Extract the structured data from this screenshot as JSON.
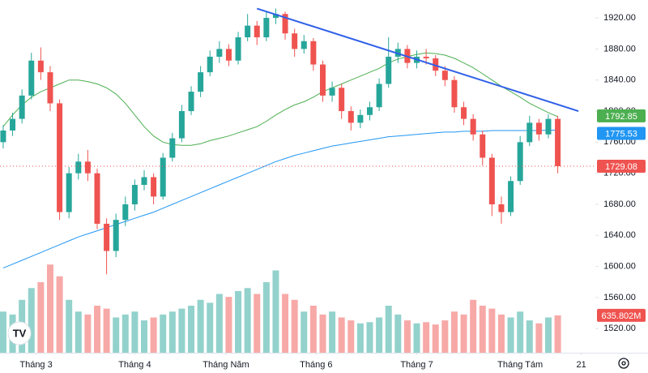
{
  "chart_data": {
    "type": "candlestick",
    "open": [
      1760,
      1775,
      1790,
      1820,
      1865,
      1850,
      1810,
      1670,
      1720,
      1735,
      1720,
      1655,
      1620,
      1660,
      1680,
      1705,
      1715,
      1690,
      1740,
      1765,
      1800,
      1825,
      1850,
      1870,
      1880,
      1865,
      1895,
      1910,
      1895,
      1920,
      1925,
      1900,
      1880,
      1890,
      1860,
      1820,
      1830,
      1800,
      1785,
      1795,
      1805,
      1835,
      1870,
      1880,
      1862,
      1870,
      1868,
      1852,
      1840,
      1805,
      1790,
      1770,
      1740,
      1680,
      1670,
      1710,
      1760,
      1785,
      1770,
      1790
    ],
    "high": [
      1782,
      1798,
      1828,
      1875,
      1882,
      1858,
      1815,
      1728,
      1745,
      1750,
      1726,
      1662,
      1668,
      1690,
      1712,
      1724,
      1720,
      1746,
      1772,
      1808,
      1832,
      1858,
      1878,
      1890,
      1886,
      1902,
      1925,
      1916,
      1928,
      1932,
      1928,
      1906,
      1898,
      1894,
      1865,
      1838,
      1835,
      1806,
      1802,
      1812,
      1842,
      1895,
      1888,
      1885,
      1878,
      1880,
      1872,
      1858,
      1845,
      1812,
      1796,
      1775,
      1745,
      1690,
      1716,
      1768,
      1794,
      1790,
      1796,
      1794
    ],
    "low": [
      1752,
      1768,
      1784,
      1815,
      1840,
      1800,
      1660,
      1662,
      1712,
      1710,
      1648,
      1590,
      1612,
      1652,
      1672,
      1698,
      1680,
      1686,
      1735,
      1760,
      1795,
      1818,
      1845,
      1862,
      1858,
      1860,
      1890,
      1885,
      1890,
      1912,
      1892,
      1870,
      1874,
      1852,
      1812,
      1812,
      1790,
      1775,
      1778,
      1788,
      1800,
      1830,
      1862,
      1855,
      1855,
      1860,
      1845,
      1832,
      1798,
      1782,
      1762,
      1730,
      1665,
      1655,
      1665,
      1705,
      1755,
      1762,
      1765,
      1720
    ],
    "close": [
      1775,
      1790,
      1820,
      1865,
      1850,
      1810,
      1670,
      1720,
      1735,
      1720,
      1655,
      1620,
      1660,
      1680,
      1705,
      1715,
      1690,
      1740,
      1765,
      1800,
      1825,
      1850,
      1870,
      1880,
      1865,
      1895,
      1910,
      1895,
      1920,
      1925,
      1900,
      1880,
      1890,
      1860,
      1820,
      1830,
      1800,
      1785,
      1795,
      1805,
      1835,
      1870,
      1880,
      1862,
      1870,
      1868,
      1852,
      1840,
      1805,
      1790,
      1770,
      1740,
      1680,
      1670,
      1710,
      1760,
      1785,
      1770,
      1790,
      1729.08
    ],
    "up_color": "#26a69a",
    "down_color": "#ef5350",
    "volume": {
      "values": [
        700,
        650,
        900,
        1100,
        1200,
        1500,
        1300,
        900,
        700,
        650,
        800,
        750,
        600,
        650,
        700,
        550,
        600,
        650,
        700,
        750,
        800,
        900,
        850,
        1000,
        950,
        1050,
        1100,
        1000,
        1200,
        1400,
        1000,
        900,
        700,
        800,
        650,
        700,
        600,
        550,
        500,
        520,
        600,
        800,
        650,
        550,
        500,
        520,
        480,
        550,
        700,
        650,
        900,
        800,
        750,
        650,
        600,
        700,
        550,
        500,
        600,
        635.802
      ],
      "value_labels_last": "635.802M",
      "up_color": "#93d2cc",
      "down_color": "#f7a9a7",
      "vlim": [
        0,
        6000
      ]
    },
    "ma_lines": [
      {
        "color": "#4caf50",
        "values": [
          1780,
          1795,
          1808,
          1818,
          1825,
          1830,
          1835,
          1840,
          1840,
          1838,
          1835,
          1830,
          1822,
          1810,
          1795,
          1780,
          1768,
          1760,
          1757,
          1756,
          1756,
          1758,
          1762,
          1765,
          1768,
          1772,
          1776,
          1780,
          1787,
          1795,
          1802,
          1808,
          1812,
          1818,
          1825,
          1830,
          1835,
          1840,
          1845,
          1850,
          1855,
          1862,
          1867,
          1870,
          1873,
          1875,
          1874,
          1872,
          1868,
          1862,
          1856,
          1848,
          1840,
          1832,
          1825,
          1818,
          1810,
          1804,
          1798,
          1792.85
        ]
      },
      {
        "color": "#2196f3",
        "values": [
          1598,
          1603,
          1608,
          1613,
          1618,
          1623,
          1628,
          1633,
          1638,
          1642,
          1646,
          1650,
          1654,
          1658,
          1662,
          1666,
          1670,
          1675,
          1680,
          1685,
          1690,
          1695,
          1700,
          1705,
          1710,
          1715,
          1720,
          1725,
          1730,
          1735,
          1739,
          1743,
          1746,
          1749,
          1752,
          1755,
          1757,
          1759,
          1761,
          1763,
          1765,
          1767,
          1768,
          1769,
          1770,
          1771,
          1772,
          1773,
          1773,
          1774,
          1774,
          1774,
          1775,
          1775,
          1775,
          1775,
          1775,
          1775,
          1775.5,
          1775.53
        ]
      }
    ],
    "trend_line": {
      "color": "#3060e8",
      "x": [
        27,
        61.2
      ],
      "y": [
        1932,
        1800
      ]
    },
    "xlim": [
      -0.34,
      63
    ],
    "ylim": [
      1489,
      1943
    ],
    "yticks": [
      {
        "value": 1520,
        "label": "1520.00"
      },
      {
        "value": 1560,
        "label": "1560.00"
      },
      {
        "value": 1600,
        "label": "1600.00"
      },
      {
        "value": 1640,
        "label": "1640.00"
      },
      {
        "value": 1680,
        "label": "1680.00"
      },
      {
        "value": 1720,
        "label": "1720.00"
      },
      {
        "value": 1760,
        "label": "1760.00"
      },
      {
        "value": 1800,
        "label": "1800.00"
      },
      {
        "value": 1840,
        "label": "1840.00"
      },
      {
        "value": 1880,
        "label": "1880.00"
      },
      {
        "value": 1920,
        "label": "1920.00"
      }
    ],
    "xticks": [
      {
        "value": 3.5,
        "label": "Tháng 3"
      },
      {
        "value": 14,
        "label": "Tháng 4"
      },
      {
        "value": 23.7,
        "label": "Tháng Năm"
      },
      {
        "value": 33.3,
        "label": "Tháng 6"
      },
      {
        "value": 44,
        "label": "Tháng 7"
      },
      {
        "value": 55,
        "label": "Tháng Tám"
      },
      {
        "value": 61.5,
        "label": "21"
      }
    ],
    "grid": false
  }
}
